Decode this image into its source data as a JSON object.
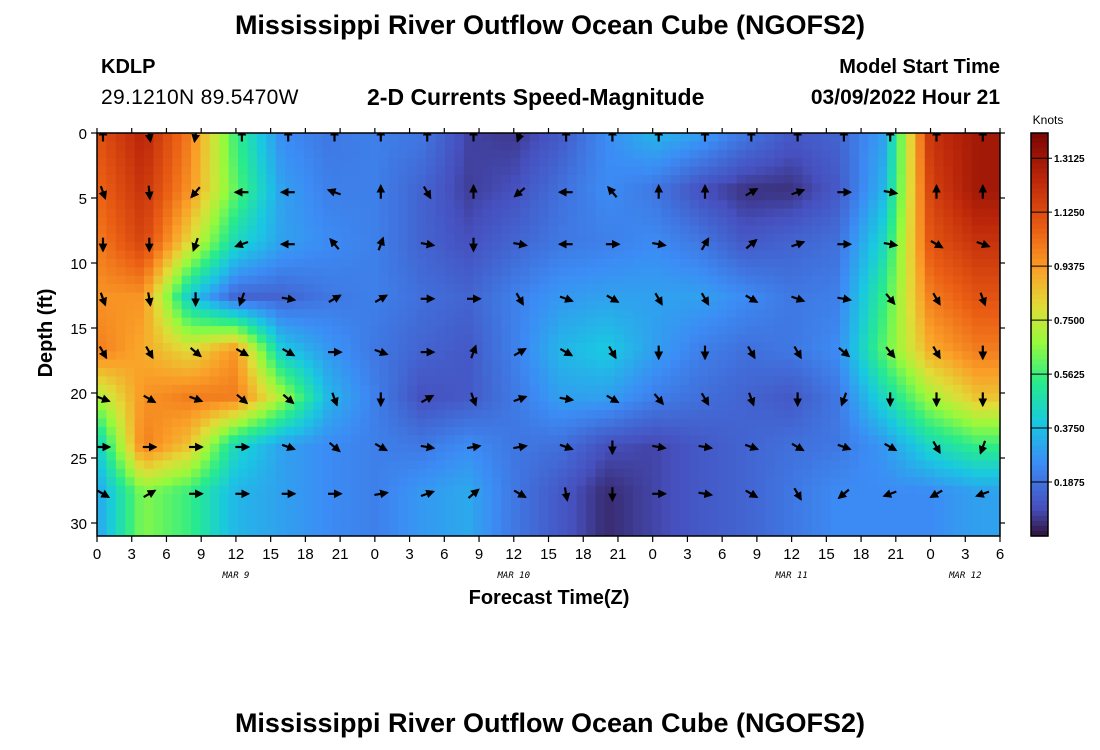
{
  "header": {
    "title": "Mississippi River Outflow Ocean Cube (NGOFS2)",
    "station": "KDLP",
    "coords": "29.1210N  89.5470W",
    "subtitle": "2-D Currents Speed-Magnitude",
    "model_start_label": "Model Start Time",
    "model_start_value": "03/09/2022 Hour 21"
  },
  "footer": {
    "title": "Mississippi River Outflow Ocean Cube (NGOFS2)"
  },
  "chart_data": {
    "type": "heatmap",
    "xlabel": "Forecast Time(Z)",
    "ylabel": "Depth (ft)",
    "x_tick_labels": [
      "0",
      "3",
      "6",
      "9",
      "12",
      "15",
      "18",
      "21",
      "0",
      "3",
      "6",
      "9",
      "12",
      "15",
      "18",
      "21",
      "0",
      "3",
      "6",
      "9",
      "12",
      "15",
      "18",
      "21",
      "0",
      "3",
      "6"
    ],
    "date_labels": [
      {
        "label": "MAR 9",
        "tick_index": 4
      },
      {
        "label": "MAR 10",
        "tick_index": 12
      },
      {
        "label": "MAR 11",
        "tick_index": 20
      },
      {
        "label": "MAR 12",
        "tick_index": 25
      }
    ],
    "xlim_hours": [
      0,
      78
    ],
    "y_ticks": [
      0,
      5,
      10,
      15,
      20,
      25,
      30
    ],
    "ylim": [
      0,
      31
    ],
    "colorbar": {
      "units": "Knots",
      "tick_labels": [
        "1.3125",
        "1.1250",
        "0.9375",
        "0.7500",
        "0.5625",
        "0.3750",
        "0.1875"
      ],
      "tick_values": [
        1.3125,
        1.125,
        0.9375,
        0.75,
        0.5625,
        0.375,
        0.1875
      ],
      "range": [
        0,
        1.4
      ]
    },
    "arrow_times_hours": [
      0,
      4,
      8,
      12,
      16,
      20,
      24,
      28,
      32,
      36,
      40,
      44,
      48,
      52,
      56,
      60,
      64,
      68,
      72,
      76
    ],
    "arrow_depths_ft": [
      0,
      4.4,
      8.4,
      12.6,
      16.7,
      20.3,
      24,
      27.6
    ],
    "speed_knots": [
      [
        1.1,
        1.25,
        1.0,
        0.55,
        0.25,
        0.2,
        0.22,
        0.2,
        0.08,
        0.06,
        0.12,
        0.25,
        0.35,
        0.3,
        0.2,
        0.12,
        0.15,
        0.3,
        1.2,
        1.3
      ],
      [
        1.05,
        1.2,
        0.95,
        0.6,
        0.3,
        0.22,
        0.22,
        0.15,
        0.07,
        0.1,
        0.18,
        0.25,
        0.2,
        0.1,
        0.05,
        0.05,
        0.12,
        0.35,
        1.15,
        1.3
      ],
      [
        1.0,
        1.15,
        0.8,
        0.45,
        0.3,
        0.25,
        0.22,
        0.15,
        0.1,
        0.15,
        0.2,
        0.22,
        0.25,
        0.2,
        0.12,
        0.15,
        0.18,
        0.45,
        1.1,
        1.2
      ],
      [
        0.95,
        0.95,
        0.4,
        0.15,
        0.15,
        0.2,
        0.22,
        0.18,
        0.15,
        0.22,
        0.28,
        0.3,
        0.3,
        0.3,
        0.25,
        0.2,
        0.22,
        0.55,
        1.0,
        1.1
      ],
      [
        1.0,
        0.9,
        0.8,
        0.95,
        0.4,
        0.28,
        0.2,
        0.15,
        0.12,
        0.22,
        0.35,
        0.4,
        0.3,
        0.22,
        0.18,
        0.2,
        0.25,
        0.6,
        0.9,
        1.0
      ],
      [
        0.7,
        0.95,
        1.0,
        1.0,
        0.7,
        0.35,
        0.22,
        0.1,
        0.12,
        0.2,
        0.3,
        0.3,
        0.22,
        0.18,
        0.15,
        0.12,
        0.2,
        0.45,
        0.7,
        0.85
      ],
      [
        0.4,
        1.0,
        0.85,
        0.45,
        0.3,
        0.25,
        0.22,
        0.2,
        0.25,
        0.2,
        0.18,
        0.1,
        0.08,
        0.12,
        0.15,
        0.18,
        0.2,
        0.28,
        0.45,
        0.55
      ],
      [
        0.3,
        0.65,
        0.55,
        0.35,
        0.3,
        0.25,
        0.22,
        0.28,
        0.32,
        0.2,
        0.12,
        0.04,
        0.08,
        0.12,
        0.15,
        0.2,
        0.25,
        0.25,
        0.25,
        0.3
      ]
    ],
    "direction_deg": [
      [
        0,
        170,
        190,
        0,
        0,
        0,
        0,
        0,
        0,
        200,
        0,
        0,
        0,
        0,
        0,
        0,
        0,
        0,
        0,
        0
      ],
      [
        160,
        175,
        220,
        270,
        270,
        290,
        0,
        150,
        0,
        230,
        270,
        320,
        0,
        0,
        60,
        70,
        90,
        100,
        0,
        0
      ],
      [
        180,
        180,
        200,
        250,
        270,
        320,
        20,
        100,
        180,
        100,
        270,
        90,
        100,
        30,
        50,
        70,
        90,
        100,
        120,
        110
      ],
      [
        160,
        170,
        180,
        200,
        100,
        60,
        60,
        90,
        90,
        150,
        110,
        120,
        150,
        150,
        120,
        110,
        100,
        140,
        150,
        160
      ],
      [
        150,
        150,
        130,
        120,
        120,
        90,
        110,
        90,
        20,
        60,
        120,
        150,
        180,
        180,
        150,
        150,
        130,
        140,
        150,
        180
      ],
      [
        110,
        120,
        110,
        130,
        130,
        160,
        180,
        60,
        160,
        70,
        100,
        120,
        140,
        150,
        160,
        180,
        200,
        180,
        180,
        180
      ],
      [
        90,
        90,
        90,
        90,
        110,
        130,
        120,
        100,
        80,
        80,
        110,
        180,
        100,
        100,
        110,
        120,
        110,
        120,
        150,
        200
      ],
      [
        120,
        60,
        90,
        90,
        90,
        90,
        80,
        70,
        50,
        120,
        170,
        180,
        90,
        100,
        120,
        150,
        230,
        250,
        240,
        250
      ]
    ]
  }
}
